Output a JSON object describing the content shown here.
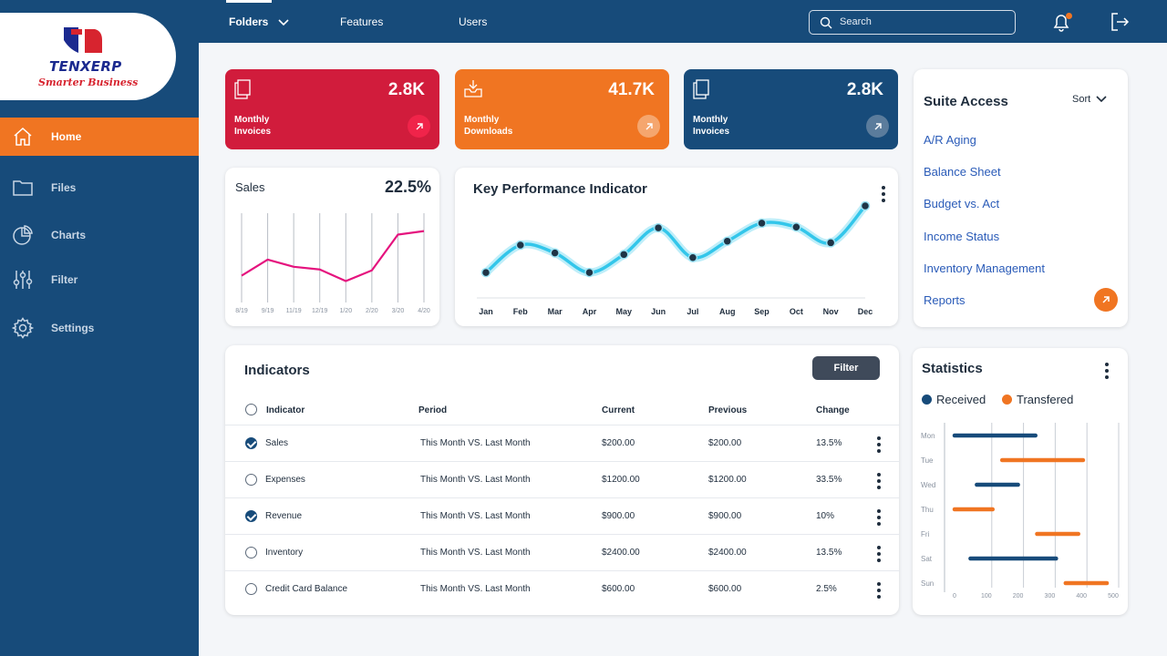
{
  "brand": {
    "name": "TENXERP",
    "tagline": "Smarter Business"
  },
  "sidebar": {
    "items": [
      {
        "label": "Home",
        "icon": "home-icon",
        "active": true
      },
      {
        "label": "Files",
        "icon": "folder-icon",
        "active": false
      },
      {
        "label": "Charts",
        "icon": "pie-chart-icon",
        "active": false
      },
      {
        "label": "Filter",
        "icon": "sliders-icon",
        "active": false
      },
      {
        "label": "Settings",
        "icon": "gear-icon",
        "active": false
      }
    ]
  },
  "topbar": {
    "tabs": [
      {
        "label": "Folders",
        "active": true,
        "has_dropdown": true
      },
      {
        "label": "Features",
        "active": false
      },
      {
        "label": "Users",
        "active": false
      }
    ],
    "search": {
      "placeholder": "Search",
      "value": ""
    },
    "notification_badge": true
  },
  "stat_cards": [
    {
      "value": "2.8K",
      "label": "Monthly Invoices",
      "color": "#d11c3c",
      "icon": "document-icon"
    },
    {
      "value": "41.7K",
      "label": "Monthly Downloads",
      "color": "#f07522",
      "icon": "download-icon"
    },
    {
      "value": "2.8K",
      "label": "Monthly Invoices",
      "color": "#174b7a",
      "icon": "document-icon"
    }
  ],
  "sales_card": {
    "title": "Sales",
    "value": "22.5%",
    "chart_data": {
      "type": "line",
      "x": [
        "8/19",
        "9/19",
        "11/19",
        "12/19",
        "1/20",
        "2/20",
        "3/20",
        "4/20"
      ],
      "values": [
        30,
        48,
        40,
        37,
        24,
        36,
        76,
        80
      ],
      "ylim": [
        0,
        100
      ],
      "line_color": "#e5137e"
    }
  },
  "kpi_card": {
    "title": "Key Performance Indicator",
    "chart_data": {
      "type": "line",
      "x": [
        "Jan",
        "Feb",
        "Mar",
        "Apr",
        "May",
        "Jun",
        "Jul",
        "Aug",
        "Sep",
        "Oct",
        "Nov",
        "Dec"
      ],
      "values": [
        15,
        50,
        40,
        15,
        38,
        72,
        34,
        55,
        78,
        73,
        53,
        100
      ],
      "ylim": [
        0,
        100
      ],
      "line_color": "#33c6ea",
      "point_color": "#1f3446"
    }
  },
  "suite_access": {
    "title": "Suite Access",
    "sort_label": "Sort",
    "links": [
      "A/R Aging",
      "Balance Sheet",
      "Budget vs. Act",
      "Income Status",
      "Inventory Management",
      "Reports"
    ]
  },
  "indicators": {
    "title": "Indicators",
    "filter_label": "Filter",
    "columns": [
      "Indicator",
      "Period",
      "Current",
      "Previous",
      "Change"
    ],
    "rows": [
      {
        "indicator": "Sales",
        "period": "This Month VS. Last Month",
        "current": "$200.00",
        "previous": "$200.00",
        "change": "13.5%",
        "checked": true
      },
      {
        "indicator": "Expenses",
        "period": "This Month VS. Last Month",
        "current": "$1200.00",
        "previous": "$1200.00",
        "change": "33.5%",
        "checked": false
      },
      {
        "indicator": "Revenue",
        "period": "This Month VS. Last Month",
        "current": "$900.00",
        "previous": "$900.00",
        "change": "10%",
        "checked": true
      },
      {
        "indicator": "Inventory",
        "period": "This Month VS. Last Month",
        "current": "$2400.00",
        "previous": "$2400.00",
        "change": "13.5%",
        "checked": false
      },
      {
        "indicator": "Credit Card Balance",
        "period": "This Month VS. Last Month",
        "current": "$600.00",
        "previous": "$600.00",
        "change": "2.5%",
        "checked": false
      }
    ]
  },
  "statistics": {
    "title": "Statistics",
    "legend": [
      {
        "name": "Received",
        "color": "#174b7a"
      },
      {
        "name": "Transfered",
        "color": "#f07522"
      }
    ],
    "chart_data": {
      "type": "bar",
      "orientation": "horizontal-range",
      "categories": [
        "Mon",
        "Tue",
        "Wed",
        "Thu",
        "Fri",
        "Sat",
        "Sun"
      ],
      "xticks": [
        "0",
        "100",
        "200",
        "300",
        "400",
        "500"
      ],
      "xlim": [
        0,
        500
      ],
      "bars": [
        {
          "day": "Mon",
          "series": "Received",
          "start": 0,
          "end": 255
        },
        {
          "day": "Tue",
          "series": "Transfered",
          "start": 150,
          "end": 405
        },
        {
          "day": "Wed",
          "series": "Received",
          "start": 70,
          "end": 200
        },
        {
          "day": "Thu",
          "series": "Transfered",
          "start": 0,
          "end": 120
        },
        {
          "day": "Fri",
          "series": "Transfered",
          "start": 260,
          "end": 390
        },
        {
          "day": "Sat",
          "series": "Received",
          "start": 50,
          "end": 320
        },
        {
          "day": "Sun",
          "series": "Transfered",
          "start": 350,
          "end": 480
        }
      ],
      "grid": true
    }
  }
}
